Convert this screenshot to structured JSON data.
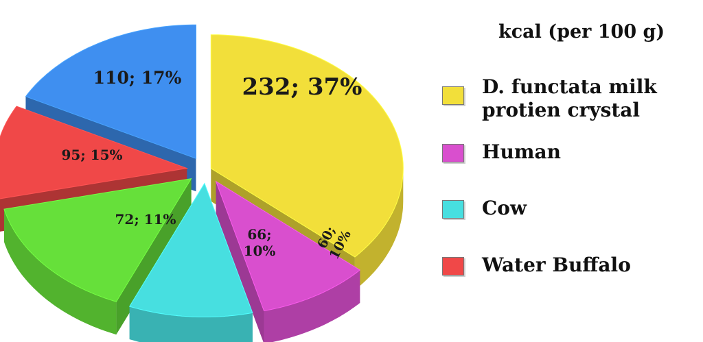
{
  "chart_data": {
    "type": "pie",
    "title": "",
    "categories": [
      "D. functata milk protien crystal",
      "Human",
      "Cow",
      "Water Buffalo",
      "",
      ""
    ],
    "values": [
      232,
      60,
      66,
      95,
      72,
      110
    ],
    "labels": [
      {
        "value": "232",
        "percent": "37%",
        "text": "232; 37%"
      },
      {
        "value": "60;",
        "percent": "10%",
        "text": "60; 10%"
      },
      {
        "value": "66;",
        "percent": "10%",
        "text": "66; 10%"
      },
      {
        "value": "72;",
        "percent": "11%",
        "text": "72; 11%"
      },
      {
        "value": "95;",
        "percent": "15%",
        "text": "95; 15%"
      },
      {
        "value": "110;",
        "percent": "17%",
        "text": "110; 17%"
      }
    ],
    "slice_order": [
      "yellow",
      "magenta",
      "cyan",
      "green",
      "red",
      "blue"
    ],
    "colors": [
      "#f2df3a",
      "#d94fce",
      "#47dfe0",
      "#66e03a",
      "#f04848",
      "#3f8ff0"
    ],
    "legend": {
      "title": "kcal (per 100 g)",
      "placement": "right",
      "entries": [
        {
          "label": "D. functata milk\nprotien crystal",
          "color": "#f2df3a"
        },
        {
          "label": "Human",
          "color": "#d94fce"
        },
        {
          "label": "Cow",
          "color": "#47dfe0"
        },
        {
          "label": "Water Buffalo",
          "color": "#f04848"
        }
      ]
    }
  }
}
